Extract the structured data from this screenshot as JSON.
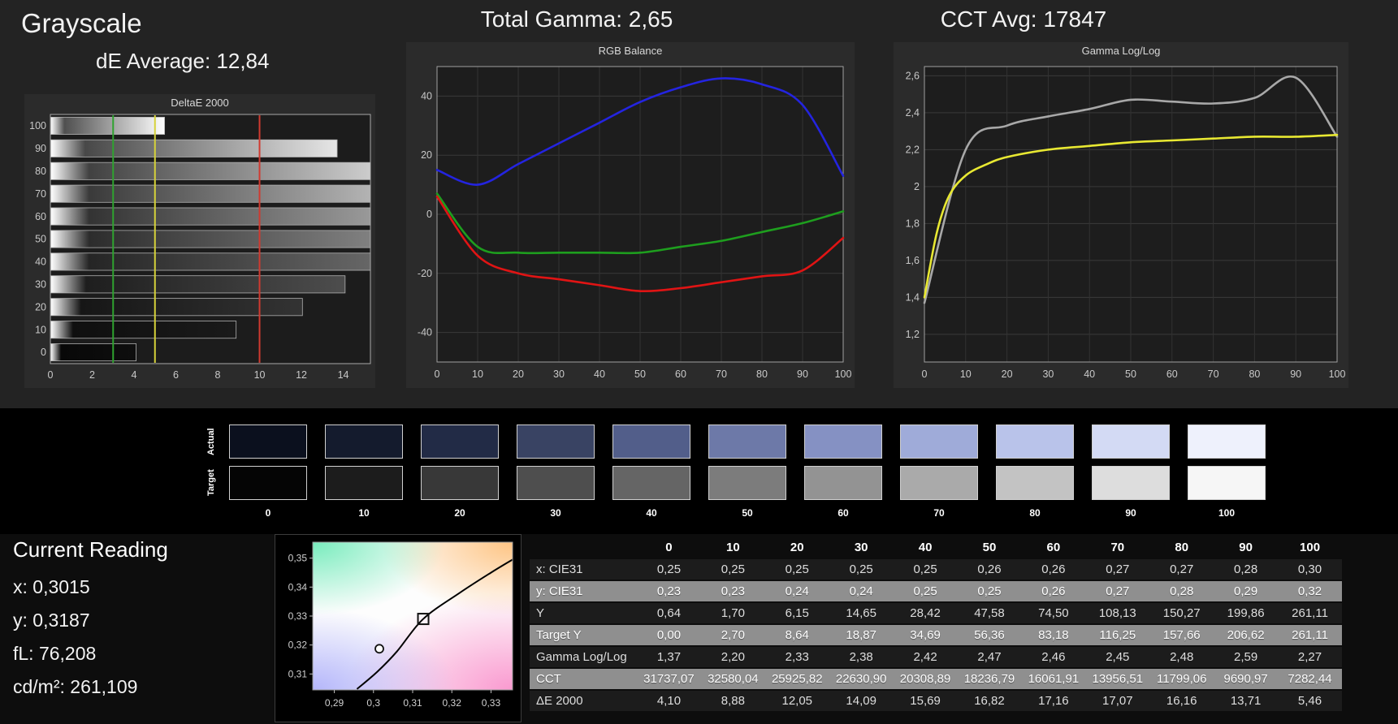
{
  "header": {
    "title": "Grayscale",
    "de_average": "dE Average: 12,84",
    "total_gamma": "Total Gamma: 2,65",
    "cct_avg": "CCT Avg: 17847"
  },
  "chart_data": [
    {
      "name": "deltae-2000",
      "type": "bar",
      "orientation": "horizontal",
      "title": "DeltaE 2000",
      "categories": [
        100,
        90,
        80,
        70,
        60,
        50,
        40,
        30,
        20,
        10,
        0
      ],
      "values": [
        5.46,
        13.71,
        16.16,
        17.07,
        17.16,
        16.82,
        15.69,
        14.09,
        12.05,
        8.88,
        4.1
      ],
      "xlim": [
        0,
        15.3
      ],
      "xticks": [
        {
          "v": 0,
          "label": "0"
        },
        {
          "v": 2,
          "label": "2"
        },
        {
          "v": 4,
          "label": "4"
        },
        {
          "v": 6,
          "label": "6"
        },
        {
          "v": 8,
          "label": "8"
        },
        {
          "v": 10,
          "label": "10"
        },
        {
          "v": 12,
          "label": "12"
        },
        {
          "v": 14,
          "label": "14"
        }
      ],
      "reference_lines": [
        {
          "name": "green",
          "x": 3,
          "color": "#2fa32f"
        },
        {
          "name": "yellow",
          "x": 5,
          "color": "#d6d23a"
        },
        {
          "name": "red",
          "x": 10,
          "color": "#d03a30"
        }
      ]
    },
    {
      "name": "rgb-balance",
      "type": "line",
      "title": "RGB Balance",
      "x": [
        0,
        10,
        20,
        30,
        40,
        50,
        60,
        70,
        80,
        90,
        100
      ],
      "xlim": [
        0,
        100
      ],
      "ylim": [
        -50,
        50
      ],
      "xticks": [
        {
          "v": 0,
          "label": "0"
        },
        {
          "v": 10,
          "label": "10"
        },
        {
          "v": 20,
          "label": "20"
        },
        {
          "v": 30,
          "label": "30"
        },
        {
          "v": 40,
          "label": "40"
        },
        {
          "v": 50,
          "label": "50"
        },
        {
          "v": 60,
          "label": "60"
        },
        {
          "v": 70,
          "label": "70"
        },
        {
          "v": 80,
          "label": "80"
        },
        {
          "v": 90,
          "label": "90"
        },
        {
          "v": 100,
          "label": "100"
        }
      ],
      "yticks": [
        {
          "v": 40,
          "label": "40"
        },
        {
          "v": 20,
          "label": "20"
        },
        {
          "v": 0,
          "label": "0"
        },
        {
          "v": -20,
          "label": "-20"
        },
        {
          "v": -40,
          "label": "-40"
        }
      ],
      "series": [
        {
          "name": "blue",
          "color": "#2424e0",
          "values": [
            15,
            10,
            17,
            24,
            31,
            38,
            43,
            46,
            44,
            37,
            13
          ]
        },
        {
          "name": "green",
          "color": "#1e9e1e",
          "values": [
            7,
            -11,
            -13,
            -13,
            -13,
            -13,
            -11,
            -9,
            -6,
            -3,
            1
          ]
        },
        {
          "name": "red",
          "color": "#e01414",
          "values": [
            6,
            -14,
            -20,
            -22,
            -24,
            -26,
            -25,
            -23,
            -21,
            -19,
            -8
          ]
        }
      ]
    },
    {
      "name": "gamma-loglog",
      "type": "line",
      "title": "Gamma Log/Log",
      "x": [
        0,
        10,
        20,
        30,
        40,
        50,
        60,
        70,
        80,
        90,
        100
      ],
      "xlim": [
        0,
        100
      ],
      "ylim": [
        1.05,
        2.65
      ],
      "xticks": [
        {
          "v": 0,
          "label": "0"
        },
        {
          "v": 10,
          "label": "10"
        },
        {
          "v": 20,
          "label": "20"
        },
        {
          "v": 30,
          "label": "30"
        },
        {
          "v": 40,
          "label": "40"
        },
        {
          "v": 50,
          "label": "50"
        },
        {
          "v": 60,
          "label": "60"
        },
        {
          "v": 70,
          "label": "70"
        },
        {
          "v": 80,
          "label": "80"
        },
        {
          "v": 90,
          "label": "90"
        },
        {
          "v": 100,
          "label": "100"
        }
      ],
      "yticks": [
        {
          "v": 2.6,
          "label": "2,6"
        },
        {
          "v": 2.4,
          "label": "2,4"
        },
        {
          "v": 2.2,
          "label": "2,2"
        },
        {
          "v": 2.0,
          "label": "2"
        },
        {
          "v": 1.8,
          "label": "1,8"
        },
        {
          "v": 1.6,
          "label": "1,6"
        },
        {
          "v": 1.4,
          "label": "1,4"
        },
        {
          "v": 1.2,
          "label": "1,2"
        }
      ],
      "series": [
        {
          "name": "measured",
          "color": "#a8a8a8",
          "values": [
            1.37,
            2.2,
            2.33,
            2.38,
            2.42,
            2.47,
            2.46,
            2.45,
            2.48,
            2.59,
            2.27
          ]
        },
        {
          "name": "target",
          "color": "#e8e832",
          "x": [
            0,
            3,
            6,
            10,
            15,
            20,
            30,
            40,
            50,
            60,
            70,
            80,
            90,
            100
          ],
          "values": [
            1.4,
            1.75,
            1.95,
            2.06,
            2.12,
            2.16,
            2.2,
            2.22,
            2.24,
            2.25,
            2.26,
            2.27,
            2.27,
            2.28
          ]
        }
      ]
    },
    {
      "name": "cie-xy",
      "type": "scatter",
      "xlim": [
        0.2845,
        0.3355
      ],
      "ylim": [
        0.3045,
        0.3555
      ],
      "xticks": [
        {
          "v": 0.29,
          "label": "0,29"
        },
        {
          "v": 0.3,
          "label": "0,3"
        },
        {
          "v": 0.31,
          "label": "0,31"
        },
        {
          "v": 0.32,
          "label": "0,32"
        },
        {
          "v": 0.33,
          "label": "0,33"
        }
      ],
      "yticks": [
        {
          "v": 0.35,
          "label": "0,35"
        },
        {
          "v": 0.34,
          "label": "0,34"
        },
        {
          "v": 0.33,
          "label": "0,33"
        },
        {
          "v": 0.32,
          "label": "0,32"
        },
        {
          "v": 0.31,
          "label": "0,31"
        }
      ],
      "points": [
        {
          "name": "target",
          "shape": "square",
          "x": 0.3127,
          "y": 0.329
        },
        {
          "name": "measured",
          "shape": "circle",
          "x": 0.3015,
          "y": 0.3187
        }
      ],
      "locus": [
        [
          0.2958,
          0.3048
        ],
        [
          0.301,
          0.3108
        ],
        [
          0.306,
          0.3178
        ],
        [
          0.3127,
          0.329
        ],
        [
          0.322,
          0.338
        ],
        [
          0.33,
          0.345
        ],
        [
          0.3355,
          0.3495
        ]
      ]
    }
  ],
  "swatches": {
    "row_labels": [
      "Actual",
      "Target"
    ],
    "columns": [
      "0",
      "10",
      "20",
      "30",
      "40",
      "50",
      "60",
      "70",
      "80",
      "90",
      "100"
    ],
    "actual_colors": [
      "#0b101e",
      "#141b2d",
      "#222b46",
      "#394363",
      "#525e8a",
      "#6d79a8",
      "#8591c3",
      "#9fabd9",
      "#b9c3ea",
      "#d3daf4",
      "#eef1fc"
    ],
    "target_colors": [
      "#050505",
      "#1c1c1c",
      "#383838",
      "#4e4e4e",
      "#656565",
      "#7c7c7c",
      "#939393",
      "#aaaaaa",
      "#c3c3c3",
      "#dddddd",
      "#f6f6f6"
    ]
  },
  "current_reading": {
    "title": "Current Reading",
    "items": [
      {
        "key": "x",
        "label": "x:",
        "value": "0,3015"
      },
      {
        "key": "y",
        "label": "y:",
        "value": "0,3187"
      },
      {
        "key": "fL",
        "label": "fL:",
        "value": "76,208"
      },
      {
        "key": "cdm2",
        "label": "cd/m²:",
        "value": "261,109"
      }
    ]
  },
  "table": {
    "columns": [
      "0",
      "10",
      "20",
      "30",
      "40",
      "50",
      "60",
      "70",
      "80",
      "90",
      "100"
    ],
    "rows": [
      {
        "label": "x: CIE31",
        "values": [
          "0,25",
          "0,25",
          "0,25",
          "0,25",
          "0,25",
          "0,26",
          "0,26",
          "0,27",
          "0,27",
          "0,28",
          "0,30"
        ]
      },
      {
        "label": "y: CIE31",
        "values": [
          "0,23",
          "0,23",
          "0,24",
          "0,24",
          "0,25",
          "0,25",
          "0,26",
          "0,27",
          "0,28",
          "0,29",
          "0,32"
        ]
      },
      {
        "label": "Y",
        "values": [
          "0,64",
          "1,70",
          "6,15",
          "14,65",
          "28,42",
          "47,58",
          "74,50",
          "108,13",
          "150,27",
          "199,86",
          "261,11"
        ]
      },
      {
        "label": "Target Y",
        "values": [
          "0,00",
          "2,70",
          "8,64",
          "18,87",
          "34,69",
          "56,36",
          "83,18",
          "116,25",
          "157,66",
          "206,62",
          "261,11"
        ]
      },
      {
        "label": "Gamma Log/Log",
        "values": [
          "1,37",
          "2,20",
          "2,33",
          "2,38",
          "2,42",
          "2,47",
          "2,46",
          "2,45",
          "2,48",
          "2,59",
          "2,27"
        ]
      },
      {
        "label": "CCT",
        "values": [
          "31737,07",
          "32580,04",
          "25925,82",
          "22630,90",
          "20308,89",
          "18236,79",
          "16061,91",
          "13956,51",
          "11799,06",
          "9690,97",
          "7282,44"
        ]
      },
      {
        "label": "ΔE 2000",
        "values": [
          "4,10",
          "8,88",
          "12,05",
          "14,09",
          "15,69",
          "16,82",
          "17,16",
          "17,07",
          "16,16",
          "13,71",
          "5,46"
        ]
      }
    ]
  }
}
